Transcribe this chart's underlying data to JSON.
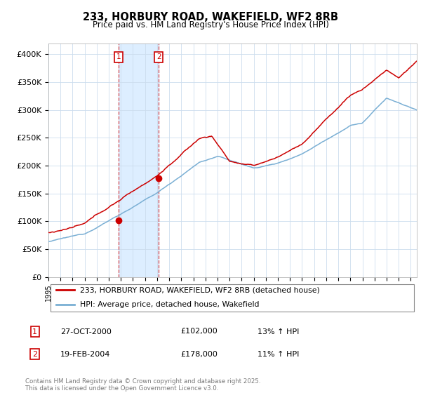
{
  "title": "233, HORBURY ROAD, WAKEFIELD, WF2 8RB",
  "subtitle": "Price paid vs. HM Land Registry's House Price Index (HPI)",
  "legend_line1": "233, HORBURY ROAD, WAKEFIELD, WF2 8RB (detached house)",
  "legend_line2": "HPI: Average price, detached house, Wakefield",
  "footer": "Contains HM Land Registry data © Crown copyright and database right 2025.\nThis data is licensed under the Open Government Licence v3.0.",
  "sale1_date": "27-OCT-2000",
  "sale1_price": "£102,000",
  "sale1_hpi": "13% ↑ HPI",
  "sale2_date": "19-FEB-2004",
  "sale2_price": "£178,000",
  "sale2_hpi": "11% ↑ HPI",
  "red_color": "#cc0000",
  "blue_color": "#7aafd4",
  "shade_color": "#ddeeff",
  "sale1_x": 2000.83,
  "sale1_y": 102000,
  "sale2_x": 2004.13,
  "sale2_y": 178000,
  "ylim": [
    0,
    420000
  ],
  "xlim": [
    1995.0,
    2025.5
  ]
}
